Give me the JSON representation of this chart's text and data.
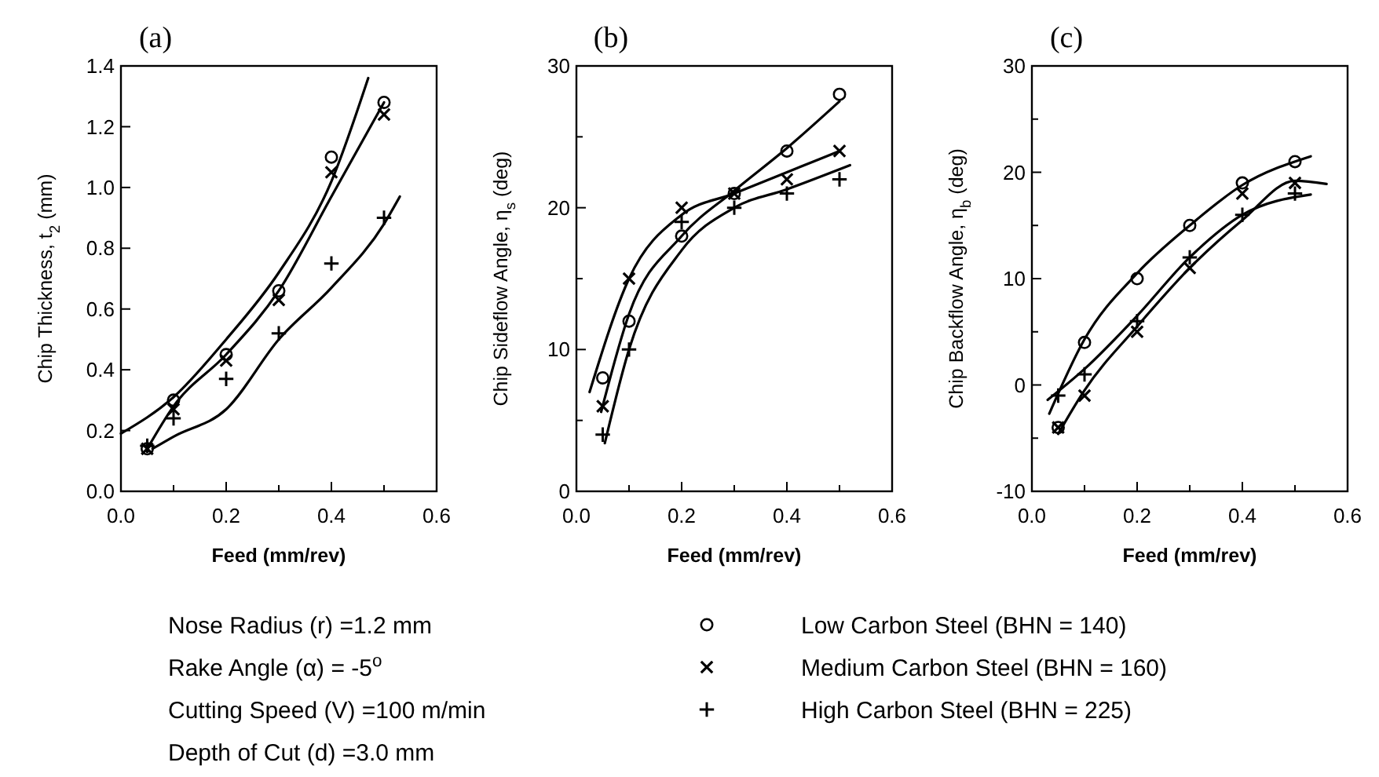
{
  "chart_data": [
    {
      "type": "scatter",
      "title": "(a)",
      "xlabel": "Feed (mm/rev)",
      "ylabel": "Chip Thickness, t$_{2}$ (mm)",
      "xlim": [
        0,
        0.6
      ],
      "ylim": [
        0,
        1.4
      ],
      "xticks": [
        {
          "value": 0,
          "label": "0.0"
        },
        {
          "value": 0.1,
          "label": null
        },
        {
          "value": 0.2,
          "label": "0.2"
        },
        {
          "value": 0.3,
          "label": null
        },
        {
          "value": 0.4,
          "label": "0.4"
        },
        {
          "value": 0.5,
          "label": null
        },
        {
          "value": 0.6,
          "label": "0.6"
        }
      ],
      "yticks": [
        {
          "value": 0,
          "label": "0.0"
        },
        {
          "value": 0.2,
          "label": "0.2"
        },
        {
          "value": 0.4,
          "label": "0.4"
        },
        {
          "value": 0.6,
          "label": "0.6"
        },
        {
          "value": 0.8,
          "label": "0.8"
        },
        {
          "value": 1,
          "label": "1.0"
        },
        {
          "value": 1.2,
          "label": "1.2"
        },
        {
          "value": 1.4,
          "label": "1.4"
        }
      ],
      "legend": "bottom",
      "annotations": [
        "Nose Radius (r) =1.2 mm",
        "Rake Angle (α) = -5$^{o}$",
        "Cutting Speed (V) =100 m/min",
        "Depth of Cut (d) =3.0 mm"
      ],
      "series": [
        {
          "type": "scatter",
          "name": "Low Carbon Steel (BHN = 140)",
          "marker": "circle",
          "color": "#000000",
          "x": [
            0.05,
            0.1,
            0.2,
            0.3,
            0.4,
            0.5
          ],
          "values": [
            0.14,
            0.3,
            0.45,
            0.66,
            1.1,
            1.28
          ]
        },
        {
          "type": "scatter",
          "name": "Medium Carbon Steel (BHN = 160)",
          "marker": "x",
          "color": "#000000",
          "x": [
            0.05,
            0.1,
            0.2,
            0.3,
            0.4,
            0.5
          ],
          "values": [
            0.14,
            0.27,
            0.43,
            0.63,
            1.05,
            1.24
          ]
        },
        {
          "type": "scatter",
          "name": "High Carbon Steel (BHN = 225)",
          "marker": "cross",
          "color": "#000000",
          "x": [
            0.05,
            0.1,
            0.2,
            0.3,
            0.4,
            0.5
          ],
          "values": [
            0.15,
            0.24,
            0.37,
            0.52,
            0.75,
            0.9
          ]
        },
        {
          "type": "line",
          "color": "#000000",
          "x": [
            0,
            0.1,
            0.2,
            0.3,
            0.4,
            0.47
          ],
          "values": [
            0.19,
            0.31,
            0.5,
            0.72,
            1.02,
            1.36
          ]
        },
        {
          "type": "line",
          "color": "#000000",
          "x": [
            0.05,
            0.1,
            0.2,
            0.3,
            0.4,
            0.5
          ],
          "values": [
            0.14,
            0.28,
            0.45,
            0.66,
            0.97,
            1.28
          ]
        },
        {
          "type": "line",
          "color": "#000000",
          "x": [
            0.06,
            0.1,
            0.2,
            0.3,
            0.4,
            0.5,
            0.53
          ],
          "values": [
            0.14,
            0.18,
            0.27,
            0.5,
            0.67,
            0.88,
            0.97
          ]
        }
      ]
    },
    {
      "type": "scatter",
      "title": "(b)",
      "xlabel": "Feed (mm/rev)",
      "ylabel": "Chip Sideflow Angle, η$_{s}$ (deg)",
      "xlim": [
        0,
        0.6
      ],
      "ylim": [
        0,
        30
      ],
      "xticks": [
        {
          "value": 0,
          "label": "0.0"
        },
        {
          "value": 0.1,
          "label": null
        },
        {
          "value": 0.2,
          "label": "0.2"
        },
        {
          "value": 0.3,
          "label": null
        },
        {
          "value": 0.4,
          "label": "0.4"
        },
        {
          "value": 0.5,
          "label": null
        },
        {
          "value": 0.6,
          "label": "0.6"
        }
      ],
      "yticks": [
        0,
        {
          "value": 5,
          "label": null
        },
        10,
        {
          "value": 15,
          "label": null
        },
        20,
        {
          "value": 25,
          "label": null
        },
        30
      ],
      "series": [
        {
          "type": "scatter",
          "marker": "circle",
          "color": "#000000",
          "x": [
            0.05,
            0.1,
            0.2,
            0.3,
            0.4,
            0.5
          ],
          "values": [
            8,
            12,
            18,
            21,
            24,
            28
          ]
        },
        {
          "type": "scatter",
          "marker": "x",
          "color": "#000000",
          "x": [
            0.05,
            0.1,
            0.2,
            0.3,
            0.4,
            0.5
          ],
          "values": [
            6,
            15,
            20,
            21,
            22,
            24
          ]
        },
        {
          "type": "scatter",
          "marker": "cross",
          "color": "#000000",
          "x": [
            0.05,
            0.1,
            0.2,
            0.3,
            0.4,
            0.5
          ],
          "values": [
            4,
            10,
            19,
            20,
            21,
            22
          ]
        },
        {
          "type": "line",
          "color": "#000000",
          "x": [
            0.025,
            0.1,
            0.2,
            0.3,
            0.4,
            0.5
          ],
          "values": [
            7,
            15,
            19.5,
            21,
            22.5,
            24
          ]
        },
        {
          "type": "line",
          "color": "#000000",
          "x": [
            0.047,
            0.1,
            0.2,
            0.3,
            0.4,
            0.5
          ],
          "values": [
            5.6,
            12.5,
            18,
            21.2,
            24.2,
            27.5
          ]
        },
        {
          "type": "line",
          "color": "#000000",
          "x": [
            0.054,
            0.1,
            0.2,
            0.3,
            0.4,
            0.52
          ],
          "values": [
            3.4,
            10,
            17,
            20,
            21.3,
            23
          ]
        }
      ]
    },
    {
      "type": "scatter",
      "title": "(c)",
      "xlabel": "Feed (mm/rev)",
      "ylabel": "Chip Backflow Angle, η$_{b}$ (deg)",
      "xlim": [
        0,
        0.6
      ],
      "ylim": [
        -10,
        30
      ],
      "xticks": [
        {
          "value": 0,
          "label": "0.0"
        },
        {
          "value": 0.1,
          "label": null
        },
        {
          "value": 0.2,
          "label": "0.2"
        },
        {
          "value": 0.3,
          "label": null
        },
        {
          "value": 0.4,
          "label": "0.4"
        },
        {
          "value": 0.5,
          "label": null
        },
        {
          "value": 0.6,
          "label": "0.6"
        }
      ],
      "yticks": [
        -10,
        {
          "value": -5,
          "label": null
        },
        0,
        {
          "value": 5,
          "label": null
        },
        10,
        {
          "value": 15,
          "label": null
        },
        20,
        {
          "value": 25,
          "label": null
        },
        30
      ],
      "series": [
        {
          "type": "scatter",
          "marker": "circle",
          "color": "#000000",
          "x": [
            0.05,
            0.1,
            0.2,
            0.3,
            0.4,
            0.5
          ],
          "values": [
            -4,
            4,
            10,
            15,
            19,
            21
          ]
        },
        {
          "type": "scatter",
          "marker": "x",
          "color": "#000000",
          "x": [
            0.05,
            0.1,
            0.2,
            0.3,
            0.4,
            0.5
          ],
          "values": [
            -4,
            -1,
            5,
            11,
            18,
            19
          ]
        },
        {
          "type": "scatter",
          "marker": "cross",
          "color": "#000000",
          "x": [
            0.05,
            0.1,
            0.2,
            0.3,
            0.4,
            0.5
          ],
          "values": [
            -1,
            1,
            6,
            12,
            16,
            18
          ]
        },
        {
          "type": "line",
          "color": "#000000",
          "x": [
            0.033,
            0.1,
            0.2,
            0.3,
            0.4,
            0.53
          ],
          "values": [
            -2.7,
            4.3,
            10.5,
            15,
            18.8,
            21.5
          ]
        },
        {
          "type": "line",
          "color": "#000000",
          "x": [
            0.03,
            0.1,
            0.2,
            0.3,
            0.4,
            0.53
          ],
          "values": [
            -1.4,
            1.5,
            6.5,
            12,
            16,
            17.9
          ]
        },
        {
          "type": "line",
          "color": "#000000",
          "x": [
            0.05,
            0.1,
            0.2,
            0.3,
            0.4,
            0.5,
            0.56
          ],
          "values": [
            -4.6,
            -0.5,
            5.5,
            11,
            15.5,
            19.2,
            18.9
          ]
        }
      ]
    }
  ]
}
